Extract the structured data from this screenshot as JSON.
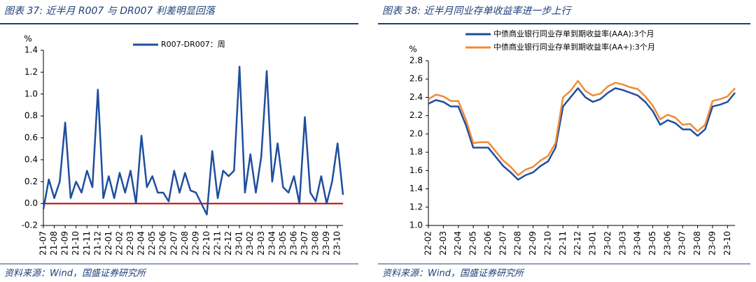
{
  "chart_data": [
    {
      "type": "line",
      "title": "图表 37:  近半月 R007 与 DR007 利差明显回落",
      "source": "资料来源：Wind，国盛证券研究所",
      "y_unit": "%",
      "categories": [
        "21-07",
        null,
        "21-08",
        null,
        "21-09",
        null,
        "21-10",
        null,
        "21-11",
        null,
        "21-12",
        null,
        "22-01",
        null,
        "22-02",
        null,
        "22-03",
        null,
        "22-04",
        null,
        "22-05",
        null,
        "22-06",
        null,
        "22-07",
        null,
        "22-08",
        null,
        "22-09",
        null,
        "22-10",
        null,
        "22-11",
        null,
        "22-12",
        null,
        "23-01",
        null,
        "23-02",
        null,
        "23-03",
        null,
        "23-04",
        null,
        "23-05",
        null,
        "23-06",
        null,
        "23-07",
        null,
        "23-08",
        null,
        "23-09",
        null,
        "23-10",
        null
      ],
      "series": [
        {
          "name": "R007-DR007：周",
          "color": "#1f4e9e",
          "values": [
            -0.05,
            0.22,
            0.05,
            0.2,
            0.74,
            0.05,
            0.2,
            0.1,
            0.3,
            0.15,
            1.04,
            0.05,
            0.25,
            0.05,
            0.28,
            0.1,
            0.3,
            0.0,
            0.62,
            0.15,
            0.25,
            0.1,
            0.1,
            0.02,
            0.3,
            0.1,
            0.28,
            0.12,
            0.1,
            0.0,
            -0.1,
            0.48,
            0.05,
            0.3,
            0.25,
            0.3,
            1.25,
            0.1,
            0.45,
            0.1,
            0.43,
            1.21,
            0.2,
            0.55,
            0.15,
            0.1,
            0.25,
            0.0,
            0.79,
            0.1,
            0.02,
            0.25,
            0.0,
            0.2,
            0.55,
            0.08
          ]
        }
      ],
      "ylim": [
        -0.2,
        1.4
      ],
      "yticks": [
        -0.2,
        {
          "value": 0,
          "label": "0.0"
        },
        0.2,
        0.4,
        0.6,
        0.8,
        {
          "value": 1,
          "label": "1.0"
        },
        1.2,
        1.4
      ],
      "zero_line_color": "#c00000",
      "legend": "top"
    },
    {
      "type": "line",
      "title": "图表 38:  近半月同业存单收益率进一步上行",
      "source": "资料来源：Wind，国盛证券研究所",
      "y_unit": "%",
      "categories": [
        "22-02",
        null,
        "22-03",
        null,
        "22-04",
        null,
        "22-05",
        null,
        "22-06",
        null,
        "22-07",
        null,
        "22-08",
        null,
        "22-09",
        null,
        "22-10",
        null,
        "22-11",
        null,
        "22-12",
        null,
        "23-01",
        null,
        "23-02",
        null,
        "23-03",
        null,
        "23-04",
        null,
        "23-05",
        null,
        "23-06",
        null,
        "23-07",
        null,
        "23-08",
        null,
        "23-09",
        null,
        "23-10",
        null
      ],
      "series": [
        {
          "name": "中债商业银行同业存单到期收益率(AAA):3个月",
          "color": "#1f4e9e",
          "values": [
            2.33,
            2.37,
            2.35,
            2.3,
            2.3,
            2.1,
            1.85,
            1.85,
            1.85,
            1.75,
            1.65,
            1.58,
            1.5,
            1.55,
            1.58,
            1.65,
            1.7,
            1.85,
            2.3,
            2.4,
            2.5,
            2.4,
            2.35,
            2.38,
            2.45,
            2.5,
            2.48,
            2.45,
            2.42,
            2.35,
            2.25,
            2.1,
            2.15,
            2.12,
            2.05,
            2.05,
            1.98,
            2.05,
            2.3,
            2.32,
            2.35,
            2.45
          ]
        },
        {
          "name": "中债商业银行同业存单到期收益率(AA+):3个月",
          "color": "#f08a36",
          "values": [
            2.38,
            2.43,
            2.41,
            2.36,
            2.36,
            2.16,
            1.9,
            1.91,
            1.91,
            1.81,
            1.71,
            1.64,
            1.55,
            1.61,
            1.64,
            1.71,
            1.76,
            1.9,
            2.4,
            2.47,
            2.58,
            2.47,
            2.42,
            2.44,
            2.52,
            2.56,
            2.54,
            2.51,
            2.49,
            2.41,
            2.31,
            2.16,
            2.21,
            2.18,
            2.1,
            2.11,
            2.03,
            2.1,
            2.36,
            2.38,
            2.41,
            2.5
          ]
        }
      ],
      "ylim": [
        1.0,
        2.8
      ],
      "yticks": [
        {
          "value": 1,
          "label": "1.0"
        },
        1.2,
        1.4,
        1.6,
        1.8,
        {
          "value": 2,
          "label": "2.0"
        },
        2.2,
        2.4,
        2.6,
        2.8
      ],
      "legend": "top"
    }
  ]
}
